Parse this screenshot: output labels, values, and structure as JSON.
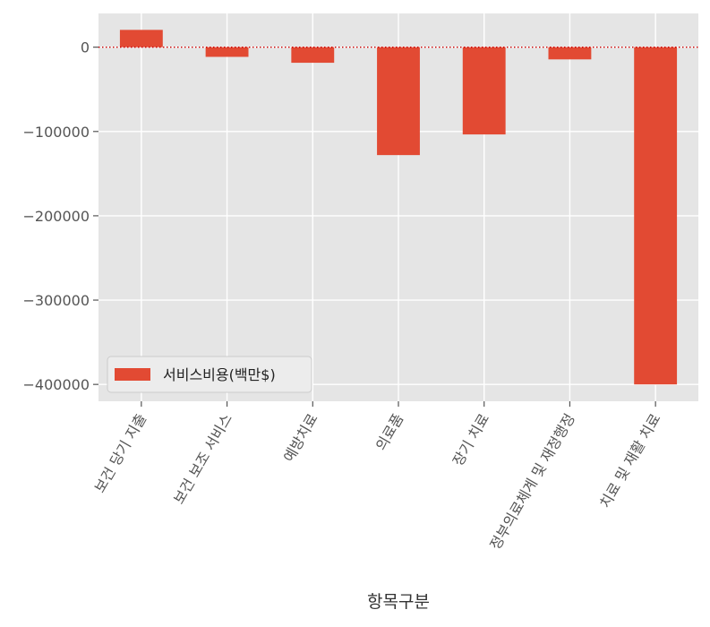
{
  "chart_data": {
    "type": "bar",
    "categories": [
      "보건 당기 지출",
      "보건 보조 서비스",
      "예방치료",
      "의료품",
      "장기 치료",
      "정부의료체계 및 재정행정",
      "치료 및 재활 치료"
    ],
    "series": [
      {
        "name": "서비스비용(백만$)",
        "values": [
          20500,
          -11500,
          -18500,
          -128000,
          -103500,
          -14500,
          -400000
        ]
      }
    ],
    "xlabel": "항목구분",
    "ylabel": "",
    "ylim": [
      -420000,
      40000
    ],
    "yticks": [
      0,
      -100000,
      -200000,
      -300000,
      -400000
    ],
    "ytick_labels": [
      "0",
      "−100000",
      "−200000",
      "−300000",
      "−400000"
    ],
    "zero_line": true,
    "grid": true,
    "legend_position": "lower-left",
    "colors": {
      "bar": "#e24a33",
      "plot_bg": "#e5e5e5",
      "grid": "#ffffff",
      "zero_line": "#cc0000"
    }
  }
}
